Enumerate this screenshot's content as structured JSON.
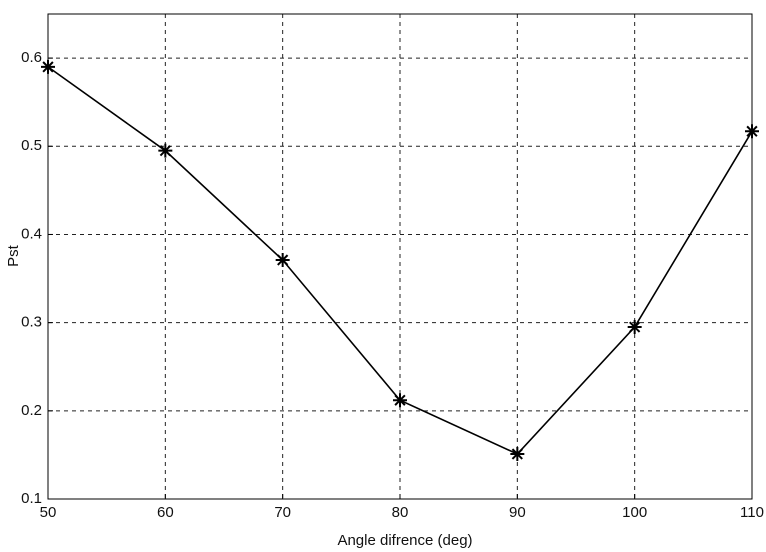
{
  "chart_data": {
    "type": "line",
    "xlabel": "Angle difrence (deg)",
    "ylabel": "Pst",
    "x": [
      50,
      60,
      70,
      80,
      90,
      100,
      110
    ],
    "series": [
      {
        "color": "#000000",
        "values": [
          0.59,
          0.495,
          0.371,
          0.212,
          0.151,
          0.295,
          0.517
        ]
      }
    ],
    "xlim": [
      50,
      110
    ],
    "xticks": [
      50,
      60,
      70,
      80,
      90,
      100,
      110
    ],
    "ylim": [
      0.1,
      0.65
    ],
    "yticks": [
      0.1,
      0.2,
      0.3,
      0.4,
      0.5,
      0.6
    ],
    "grid": true,
    "marker": "asterisk"
  }
}
